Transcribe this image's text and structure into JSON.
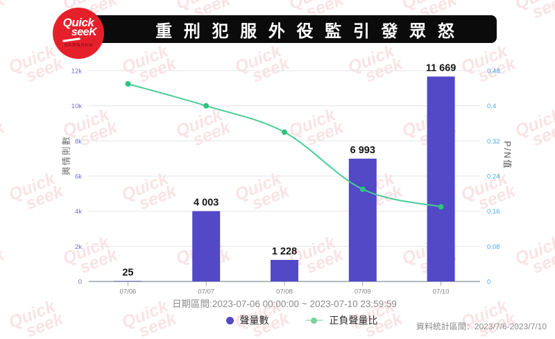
{
  "logo": {
    "line1": "Quick",
    "line2": "seeK",
    "tagline": "快析輿情資料庫"
  },
  "header": {
    "title": "重 刑 犯 服 外 役 監  引 發 眾 怒"
  },
  "chart_data": {
    "type": "bar",
    "categories": [
      "07/06",
      "07/07",
      "07/08",
      "07/09",
      "07/10"
    ],
    "series": [
      {
        "name": "聲量數",
        "type": "bar",
        "axis": "left",
        "values": [
          25,
          4003,
          1228,
          6993,
          11669
        ],
        "value_labels": [
          "25",
          "4 003",
          "1 228",
          "6 993",
          "11 669"
        ],
        "color": "#5348c6"
      },
      {
        "name": "正負聲量比",
        "type": "line",
        "axis": "right",
        "values": [
          0.45,
          0.4,
          0.34,
          0.21,
          0.17
        ],
        "color": "#47cd93",
        "marker_color": "#2ec47f"
      }
    ],
    "left_axis": {
      "name": "輿情則數",
      "min": 0,
      "max": 12000,
      "tick_labels": [
        "0",
        "2k",
        "4k",
        "6k",
        "8k",
        "10k",
        "12k"
      ],
      "tick_color": "#6f6fd2"
    },
    "right_axis": {
      "name": "P/N值",
      "min": 0,
      "max": 0.48,
      "tick_labels": [
        "0",
        "0.08",
        "0.16",
        "0.24",
        "0.32",
        "0.4",
        "0.48"
      ],
      "tick_color": "#45a9e6"
    },
    "x_caption": "日期區間:2023-07-06 00:00:00 ~ 2023-07-10 23:59:59",
    "grid": true,
    "legend_position": "bottom",
    "legend": [
      {
        "label": "聲量數",
        "marker": "dot",
        "color": "#5348c6"
      },
      {
        "label": "正負聲量比",
        "marker": "line-dot",
        "line_color": "#b9e3cb",
        "dot_color": "#79cfa0"
      }
    ]
  },
  "footer": {
    "stats_range": "資料統計區間：2023/7/6-2023/7/10"
  },
  "watermark": {
    "line1": "Quick",
    "line2": "seek",
    "color": "#dc5a63"
  }
}
